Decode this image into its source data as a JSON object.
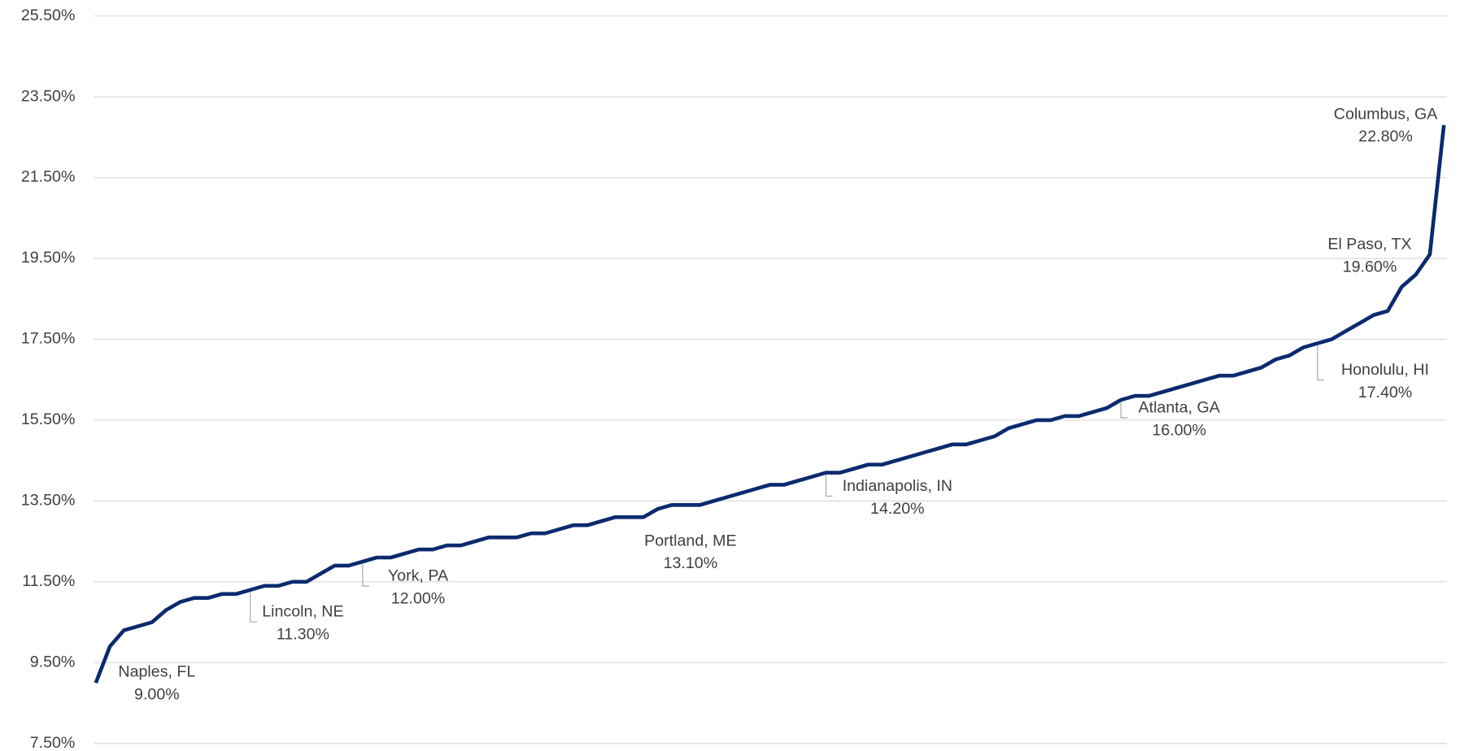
{
  "chart_data": {
    "type": "line",
    "categories": [
      "Naples, FL",
      null,
      null,
      null,
      null,
      null,
      null,
      null,
      null,
      null,
      null,
      "Lincoln, NE",
      null,
      null,
      null,
      null,
      null,
      null,
      null,
      "York, PA",
      null,
      null,
      null,
      null,
      null,
      null,
      null,
      null,
      null,
      null,
      null,
      null,
      null,
      null,
      null,
      null,
      null,
      null,
      null,
      "Portland, ME",
      null,
      null,
      null,
      null,
      null,
      null,
      null,
      null,
      null,
      null,
      null,
      null,
      "Indianapolis, IN",
      null,
      null,
      null,
      null,
      null,
      null,
      null,
      null,
      null,
      null,
      null,
      null,
      null,
      null,
      null,
      null,
      null,
      null,
      null,
      null,
      "Atlanta, GA",
      null,
      null,
      null,
      null,
      null,
      null,
      null,
      null,
      null,
      null,
      null,
      null,
      null,
      "Honolulu, HI",
      null,
      null,
      null,
      null,
      null,
      null,
      null,
      "El Paso, TX",
      "Columbus, GA"
    ],
    "series": [
      {
        "color": "#0b2a6f",
        "values": [
          9.0,
          9.9,
          10.3,
          10.4,
          10.5,
          10.8,
          11.0,
          11.1,
          11.1,
          11.2,
          11.2,
          11.3,
          11.4,
          11.4,
          11.5,
          11.5,
          11.7,
          11.9,
          11.9,
          12.0,
          12.1,
          12.1,
          12.2,
          12.3,
          12.3,
          12.4,
          12.4,
          12.5,
          12.6,
          12.6,
          12.6,
          12.7,
          12.7,
          12.8,
          12.9,
          12.9,
          13.0,
          13.1,
          13.1,
          13.1,
          13.3,
          13.4,
          13.4,
          13.4,
          13.5,
          13.6,
          13.7,
          13.8,
          13.9,
          13.9,
          14.0,
          14.1,
          14.2,
          14.2,
          14.3,
          14.4,
          14.4,
          14.5,
          14.6,
          14.7,
          14.8,
          14.9,
          14.9,
          15.0,
          15.1,
          15.3,
          15.4,
          15.5,
          15.5,
          15.6,
          15.6,
          15.7,
          15.8,
          16.0,
          16.1,
          16.1,
          16.2,
          16.3,
          16.4,
          16.5,
          16.6,
          16.6,
          16.7,
          16.8,
          17.0,
          17.1,
          17.3,
          17.4,
          17.5,
          17.7,
          17.9,
          18.1,
          18.2,
          18.8,
          19.1,
          19.6,
          22.8
        ],
        "value_labels": [
          "9.00%",
          null,
          null,
          null,
          null,
          null,
          null,
          null,
          null,
          null,
          null,
          "11.30%",
          null,
          null,
          null,
          null,
          null,
          null,
          null,
          "12.00%",
          null,
          null,
          null,
          null,
          null,
          null,
          null,
          null,
          null,
          null,
          null,
          null,
          null,
          null,
          null,
          null,
          null,
          null,
          null,
          "13.10%",
          null,
          null,
          null,
          null,
          null,
          null,
          null,
          null,
          null,
          null,
          null,
          null,
          "14.20%",
          null,
          null,
          null,
          null,
          null,
          null,
          null,
          null,
          null,
          null,
          null,
          null,
          null,
          null,
          null,
          null,
          null,
          null,
          null,
          null,
          "16.00%",
          null,
          null,
          null,
          null,
          null,
          null,
          null,
          null,
          null,
          null,
          null,
          null,
          null,
          "17.40%",
          null,
          null,
          null,
          null,
          null,
          null,
          null,
          "19.60%",
          "22.80%"
        ]
      }
    ],
    "ylim": [
      7.5,
      25.5
    ],
    "yticks": [
      {
        "value": 7.5,
        "label": "7.50%"
      },
      {
        "value": 9.5,
        "label": "9.50%"
      },
      {
        "value": 11.5,
        "label": "11.50%"
      },
      {
        "value": 13.5,
        "label": "13.50%"
      },
      {
        "value": 15.5,
        "label": "15.50%"
      },
      {
        "value": 17.5,
        "label": "17.50%"
      },
      {
        "value": 19.5,
        "label": "19.50%"
      },
      {
        "value": 21.5,
        "label": "21.50%"
      },
      {
        "value": 23.5,
        "label": "23.50%"
      },
      {
        "value": 25.5,
        "label": "25.50%"
      }
    ],
    "grid": true
  }
}
